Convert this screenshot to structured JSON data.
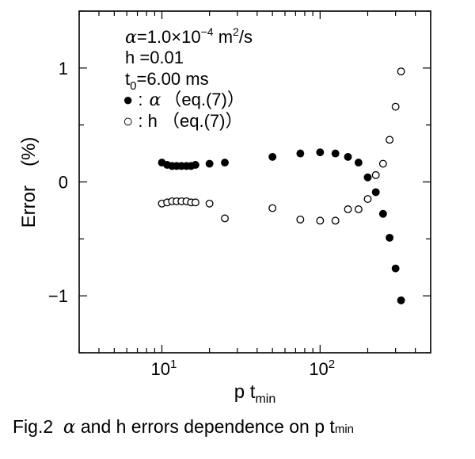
{
  "chart_data": {
    "type": "scatter",
    "xscale": "log",
    "xlim": [
      3,
      500
    ],
    "ylim": [
      -1.5,
      1.5
    ],
    "x_ticks": [
      {
        "value": 10,
        "base": "10",
        "exp": "1"
      },
      {
        "value": 100,
        "base": "10",
        "exp": "2"
      }
    ],
    "y_ticks": [
      {
        "value": 1,
        "label": "1"
      },
      {
        "value": 0,
        "label": "0"
      },
      {
        "value": -1,
        "label": "−1"
      }
    ],
    "xlabel": {
      "main": "p t",
      "sub": "min"
    },
    "ylabel": "Error　(%)",
    "annotations": {
      "line1": {
        "sym": "α",
        "text": "=1.0×10",
        "exp": "−4",
        "unit": " m",
        "unit_exp": "2",
        "unit_tail": "/s"
      },
      "line2": "h =0.01",
      "line3": {
        "t": "t",
        "sub": "0",
        "rest": "=6.00 ms"
      }
    },
    "series": [
      {
        "name": "α (eq.(7))",
        "legend_sym": "●",
        "legend_prefix": " :",
        "legend_greek": "α",
        "legend_text": "（eq.(7)）",
        "marker": "filled",
        "points": [
          [
            10.0,
            0.17
          ],
          [
            10.8,
            0.15
          ],
          [
            11.6,
            0.14
          ],
          [
            12.4,
            0.14
          ],
          [
            13.3,
            0.14
          ],
          [
            14.3,
            0.14
          ],
          [
            15.3,
            0.14
          ],
          [
            16.3,
            0.15
          ],
          [
            20.0,
            0.16
          ],
          [
            25.0,
            0.17
          ],
          [
            50.0,
            0.22
          ],
          [
            75.0,
            0.25
          ],
          [
            100.0,
            0.26
          ],
          [
            125.0,
            0.25
          ],
          [
            150.0,
            0.22
          ],
          [
            175.0,
            0.17
          ],
          [
            200.0,
            0.04
          ],
          [
            225.0,
            -0.09
          ],
          [
            250.0,
            -0.28
          ],
          [
            275.0,
            -0.49
          ],
          [
            300.0,
            -0.76
          ],
          [
            325.0,
            -1.04
          ]
        ]
      },
      {
        "name": "h (eq.(7))",
        "legend_sym": "○",
        "legend_prefix": " : h ",
        "legend_greek": "",
        "legend_text": "（eq.(7)）",
        "marker": "open",
        "points": [
          [
            10.0,
            -0.19
          ],
          [
            10.8,
            -0.18
          ],
          [
            11.6,
            -0.17
          ],
          [
            12.4,
            -0.17
          ],
          [
            13.3,
            -0.17
          ],
          [
            14.3,
            -0.17
          ],
          [
            15.3,
            -0.18
          ],
          [
            16.3,
            -0.18
          ],
          [
            20.0,
            -0.19
          ],
          [
            25.0,
            -0.32
          ],
          [
            50.0,
            -0.23
          ],
          [
            75.0,
            -0.33
          ],
          [
            100.0,
            -0.34
          ],
          [
            125.0,
            -0.34
          ],
          [
            150.0,
            -0.24
          ],
          [
            175.0,
            -0.24
          ],
          [
            200.0,
            -0.15
          ],
          [
            225.0,
            0.06
          ],
          [
            250.0,
            0.16
          ],
          [
            275.0,
            0.37
          ],
          [
            300.0,
            0.66
          ],
          [
            325.0,
            0.97
          ]
        ]
      }
    ],
    "caption": {
      "prefix": "Fig.2  ",
      "alpha": "α",
      "middle": " and h errors dependence on p t",
      "sub": "min"
    }
  }
}
